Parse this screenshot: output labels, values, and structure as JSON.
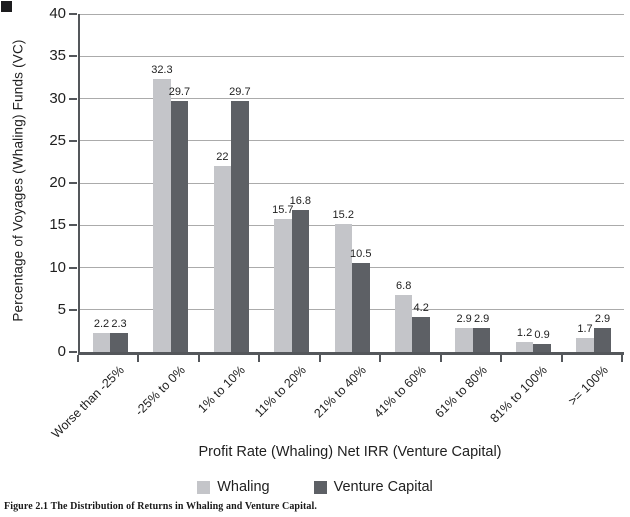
{
  "figure": {
    "caption": "Figure 2.1 The Distribution of Returns in Whaling and Venture Capital."
  },
  "chart_data": {
    "type": "bar",
    "title": "",
    "xlabel": "Profit Rate (Whaling) Net IRR (Venture Capital)",
    "ylabel": "Percentage of Voyages (Whaling) Funds (VC)",
    "ylim": [
      0,
      40
    ],
    "ytick_step": 5,
    "yticks": [
      0,
      5,
      10,
      15,
      20,
      25,
      30,
      35,
      40
    ],
    "grid": true,
    "legend_position": "bottom",
    "categories": [
      "Worse than -25%",
      "-25% to 0%",
      "1% to 10%",
      "11% to 20%",
      "21% to 40%",
      "41% to 60%",
      "61% to 80%",
      "81% to 100%",
      ">= 100%"
    ],
    "series": [
      {
        "name": "Whaling",
        "color": "#c4c5c9",
        "values": [
          2.2,
          32.3,
          22,
          15.7,
          15.2,
          6.8,
          2.9,
          1.2,
          1.7
        ],
        "labels": [
          "2.2",
          "32.3",
          "22",
          "15.7",
          "15.2",
          "6.8",
          "2.9",
          "1.2",
          "1.7"
        ]
      },
      {
        "name": "Venture Capital",
        "color": "#5d6065",
        "values": [
          2.3,
          29.7,
          29.7,
          16.8,
          10.5,
          4.2,
          2.9,
          0.9,
          2.9
        ],
        "labels": [
          "2.3",
          "29.7",
          "29.7",
          "16.8",
          "10.5",
          "4.2",
          "2.9",
          "0.9",
          "2.9"
        ]
      }
    ],
    "colors": {
      "grid": "#ababab",
      "axis": "#54575b",
      "text": "#1f1f1f"
    }
  }
}
